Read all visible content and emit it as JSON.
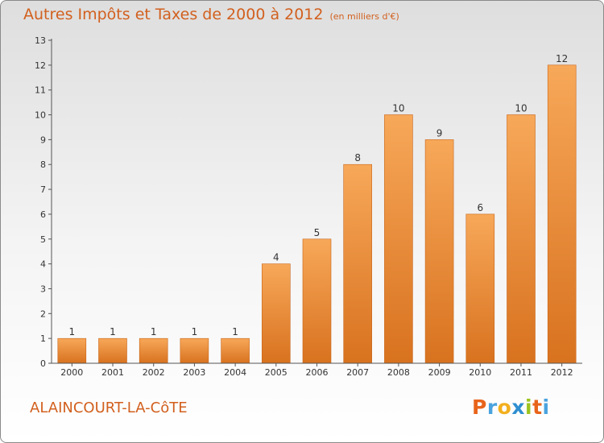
{
  "chart_data": {
    "type": "bar",
    "title": "Autres Impôts et Taxes de 2000 à 2012",
    "subtitle": "(en milliers d'€)",
    "xlabel": "",
    "ylabel": "",
    "categories": [
      "2000",
      "2001",
      "2002",
      "2003",
      "2004",
      "2005",
      "2006",
      "2007",
      "2008",
      "2009",
      "2010",
      "2011",
      "2012"
    ],
    "values": [
      1,
      1,
      1,
      1,
      1,
      4,
      5,
      8,
      10,
      9,
      6,
      10,
      12
    ],
    "ylim": [
      0,
      13
    ],
    "yticks": [
      0,
      1,
      2,
      3,
      4,
      5,
      6,
      7,
      8,
      9,
      10,
      11,
      12,
      13
    ],
    "grid": false,
    "legend": "none",
    "colors": {
      "bar_light": "#f7a859",
      "bar_dark": "#d8721f",
      "title": "#d2601e"
    }
  },
  "footer": {
    "commune": "ALAINCOURT-LA-CôTE",
    "logo_letters": [
      "P",
      "r",
      "o",
      "x",
      "i",
      "t",
      "i"
    ],
    "logo_colors": [
      "#e8641b",
      "#4aa3df",
      "#f2b01e",
      "#2e8fd0",
      "#9cc41f",
      "#e8641b",
      "#4aa3df"
    ]
  }
}
